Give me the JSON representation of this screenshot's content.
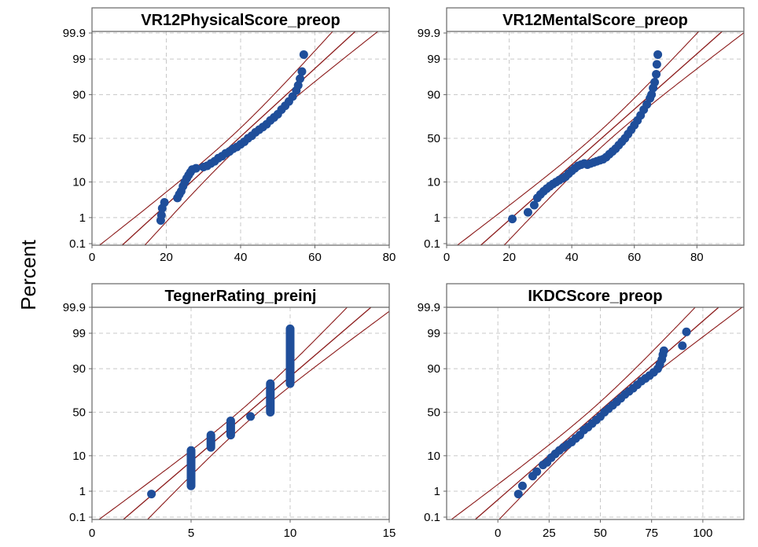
{
  "figure": {
    "ylabel": "Percent"
  },
  "colors": {
    "points": "#1f4e9a",
    "fit_line": "#8b1a1a",
    "frame": "#666666",
    "grid": "#c8c8c8",
    "header_fill": "#ffffff"
  },
  "chart_data": [
    {
      "type": "scatter",
      "subtype": "normal probability plot",
      "title": "VR12PhysicalScore_preop",
      "xlim": [
        0,
        80
      ],
      "xticks": [
        0,
        20,
        40,
        60,
        80
      ],
      "yticks": [
        0.1,
        1,
        10,
        50,
        90,
        99,
        99.9
      ],
      "yscale": "normal probability",
      "grid": true,
      "fit_line": {
        "mean": 39.5,
        "sd": 10.0
      },
      "confidence_band": true,
      "points": [
        [
          18.5,
          0.8
        ],
        [
          18.7,
          1.2
        ],
        [
          18.9,
          2.0
        ],
        [
          19.5,
          3.0
        ],
        [
          23,
          4
        ],
        [
          23.5,
          5
        ],
        [
          24,
          6
        ],
        [
          24.5,
          8
        ],
        [
          25,
          10
        ],
        [
          25.5,
          12
        ],
        [
          26,
          14
        ],
        [
          26.5,
          16
        ],
        [
          27,
          18
        ],
        [
          28,
          19
        ],
        [
          30,
          20
        ],
        [
          31,
          21
        ],
        [
          32,
          23
        ],
        [
          33,
          25
        ],
        [
          34,
          28
        ],
        [
          35,
          30
        ],
        [
          36,
          33
        ],
        [
          37,
          35
        ],
        [
          38,
          38
        ],
        [
          39,
          40
        ],
        [
          40,
          43
        ],
        [
          41,
          46
        ],
        [
          42,
          50
        ],
        [
          43,
          53
        ],
        [
          44,
          57
        ],
        [
          45,
          60
        ],
        [
          46,
          63
        ],
        [
          47,
          66
        ],
        [
          48,
          70
        ],
        [
          49,
          73
        ],
        [
          50,
          76
        ],
        [
          51,
          80
        ],
        [
          52,
          83
        ],
        [
          53,
          86
        ],
        [
          54,
          89
        ],
        [
          55,
          92
        ],
        [
          55.5,
          94
        ],
        [
          56,
          96
        ],
        [
          56.5,
          97.5
        ],
        [
          57,
          99.3
        ]
      ]
    },
    {
      "type": "scatter",
      "subtype": "normal probability plot",
      "title": "VR12MentalScore_preop",
      "xlim": [
        0,
        95
      ],
      "xticks": [
        0,
        20,
        40,
        60,
        80
      ],
      "yticks": [
        0.1,
        1,
        10,
        50,
        90,
        99,
        99.9
      ],
      "yscale": "normal probability",
      "grid": true,
      "fit_line": {
        "mean": 49.5,
        "sd": 12.3
      },
      "confidence_band": true,
      "points": [
        [
          21,
          0.9
        ],
        [
          26,
          1.5
        ],
        [
          28,
          2.5
        ],
        [
          29,
          4
        ],
        [
          30,
          5
        ],
        [
          31,
          6
        ],
        [
          32,
          7
        ],
        [
          33,
          8
        ],
        [
          34,
          9
        ],
        [
          35,
          10
        ],
        [
          36,
          11
        ],
        [
          37,
          12
        ],
        [
          38,
          13
        ],
        [
          39,
          15
        ],
        [
          40,
          17
        ],
        [
          41,
          19
        ],
        [
          42,
          21
        ],
        [
          43,
          22
        ],
        [
          44,
          23
        ],
        [
          45,
          22
        ],
        [
          46,
          23
        ],
        [
          47,
          24
        ],
        [
          48,
          25
        ],
        [
          49,
          26
        ],
        [
          50,
          27
        ],
        [
          51,
          29
        ],
        [
          52,
          32
        ],
        [
          53,
          35
        ],
        [
          54,
          38
        ],
        [
          55,
          42
        ],
        [
          56,
          46
        ],
        [
          57,
          50
        ],
        [
          58,
          55
        ],
        [
          59,
          60
        ],
        [
          60,
          65
        ],
        [
          61,
          70
        ],
        [
          62,
          75
        ],
        [
          63,
          80
        ],
        [
          64,
          84
        ],
        [
          65,
          88
        ],
        [
          65.5,
          90
        ],
        [
          66,
          93
        ],
        [
          66.5,
          95
        ],
        [
          67,
          97
        ],
        [
          67.2,
          98.5
        ],
        [
          67.5,
          99.3
        ]
      ]
    },
    {
      "type": "scatter",
      "subtype": "normal probability plot",
      "title": "TegnerRating_preinj",
      "xlim": [
        0,
        15
      ],
      "xticks": [
        0,
        5,
        10,
        15
      ],
      "yticks": [
        0.1,
        1,
        10,
        50,
        90,
        99,
        99.9
      ],
      "yscale": "normal probability",
      "grid": true,
      "fit_line": {
        "mean": 7.9,
        "sd": 2.0
      },
      "confidence_band": true,
      "columns": [
        {
          "x": 3,
          "ymin": 0.8,
          "ymax": 0.8
        },
        {
          "x": 5,
          "ymin": 1.5,
          "ymax": 13
        },
        {
          "x": 6,
          "ymin": 15,
          "ymax": 25
        },
        {
          "x": 7,
          "ymin": 25,
          "ymax": 40
        },
        {
          "x": 8,
          "ymin": 45,
          "ymax": 45
        },
        {
          "x": 9,
          "ymin": 50,
          "ymax": 80
        },
        {
          "x": 10,
          "ymin": 80,
          "ymax": 99.3
        }
      ]
    },
    {
      "type": "scatter",
      "subtype": "normal probability plot",
      "title": "IKDCScore_preop",
      "xlim": [
        -25,
        120
      ],
      "xticks": [
        0,
        25,
        50,
        75,
        100
      ],
      "yticks": [
        0.1,
        1,
        10,
        50,
        90,
        99,
        99.9
      ],
      "yscale": "normal probability",
      "grid": true,
      "fit_line": {
        "mean": 49.0,
        "sd": 19.0
      },
      "confidence_band": true,
      "points": [
        [
          10,
          0.8
        ],
        [
          12,
          1.5
        ],
        [
          17,
          3
        ],
        [
          19,
          4
        ],
        [
          22,
          6
        ],
        [
          24,
          7
        ],
        [
          26,
          9
        ],
        [
          28,
          11
        ],
        [
          30,
          13
        ],
        [
          32,
          15
        ],
        [
          34,
          17
        ],
        [
          36,
          19
        ],
        [
          38,
          22
        ],
        [
          40,
          25
        ],
        [
          42,
          30
        ],
        [
          44,
          33
        ],
        [
          46,
          37
        ],
        [
          48,
          41
        ],
        [
          50,
          45
        ],
        [
          52,
          50
        ],
        [
          54,
          54
        ],
        [
          56,
          58
        ],
        [
          58,
          62
        ],
        [
          60,
          66
        ],
        [
          62,
          70
        ],
        [
          64,
          73
        ],
        [
          66,
          76
        ],
        [
          68,
          79
        ],
        [
          70,
          82
        ],
        [
          72,
          84
        ],
        [
          74,
          86
        ],
        [
          76,
          88
        ],
        [
          78,
          90
        ],
        [
          79,
          92
        ],
        [
          80,
          94
        ],
        [
          80.5,
          95.5
        ],
        [
          81,
          96.5
        ],
        [
          90,
          97.5
        ],
        [
          92,
          99.1
        ]
      ]
    }
  ]
}
